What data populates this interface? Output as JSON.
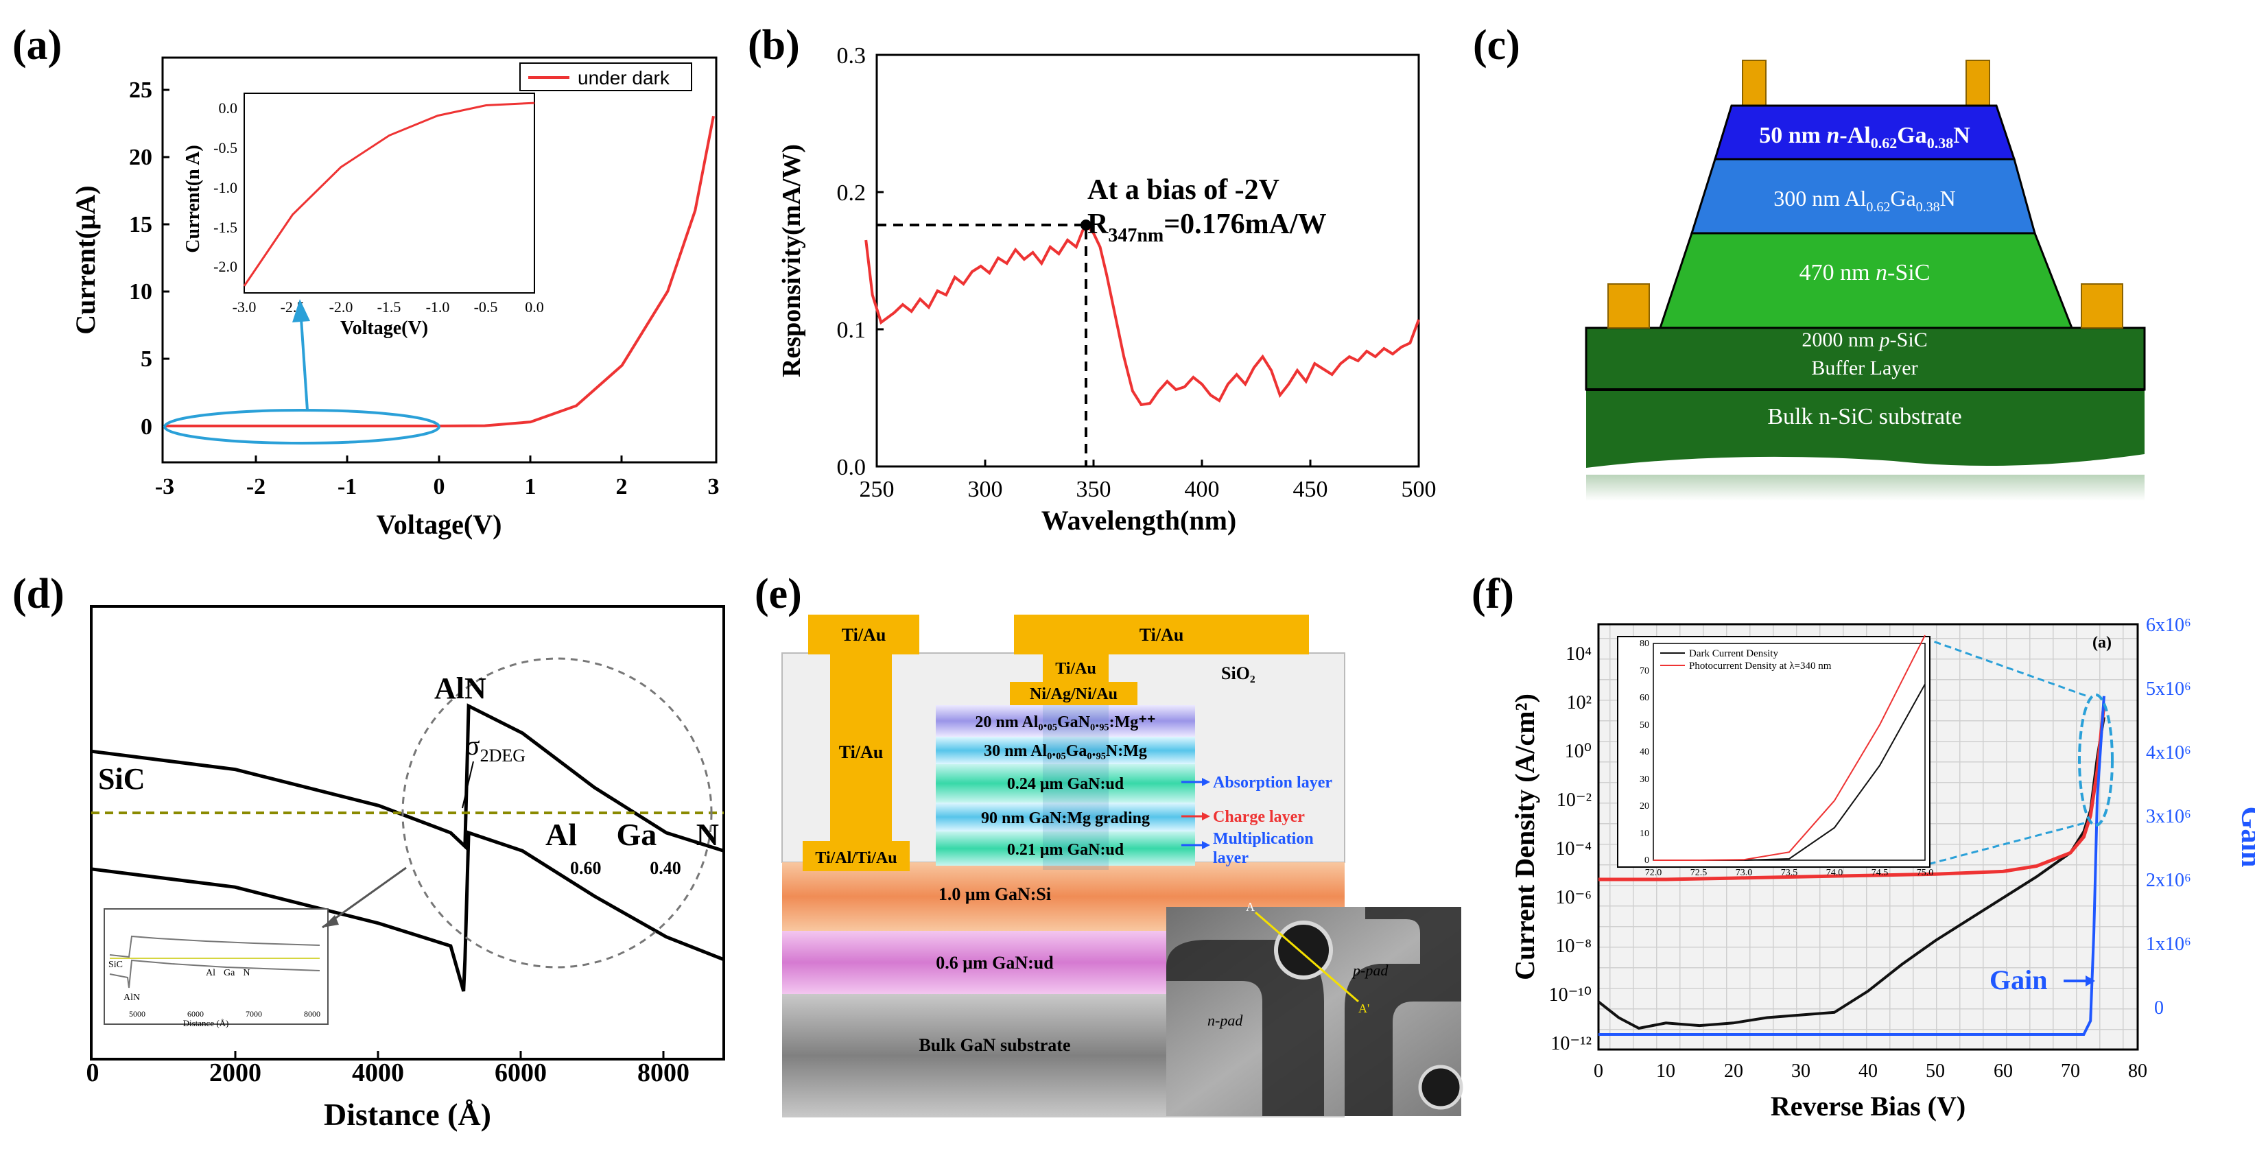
{
  "panels": {
    "a": {
      "label": "(a)",
      "xlabel": "Voltage(V)",
      "ylabel": "Current(μA)",
      "xticks": [
        "-3",
        "-2",
        "-1",
        "0",
        "1",
        "2",
        "3"
      ],
      "yticks": [
        "0",
        "5",
        "10",
        "15",
        "20",
        "25"
      ],
      "legend": "under dark",
      "inset": {
        "xlabel": "Voltage(V)",
        "ylabel": "Current(n A)",
        "xticks": [
          "-3.0",
          "-2.5",
          "-2.0",
          "-1.5",
          "-1.0",
          "-0.5",
          "0.0"
        ],
        "yticks": [
          "0.0",
          "-0.5",
          "-1.0",
          "-1.5",
          "-2.0"
        ]
      }
    },
    "b": {
      "label": "(b)",
      "xlabel": "Wavelength(nm)",
      "ylabel": "Responsivity(mA/W)",
      "xticks": [
        "250",
        "300",
        "350",
        "400",
        "450",
        "500"
      ],
      "yticks": [
        "0.0",
        "0.1",
        "0.2",
        "0.3"
      ],
      "annotation_line1": "At a bias of -2V",
      "annotation_r": "R",
      "annotation_sub": "347nm",
      "annotation_val": "=0.176mA/W"
    },
    "c": {
      "label": "(c)",
      "layers": {
        "l1_pre": "50 nm ",
        "l1_n": "n",
        "l1_mid": "-Al",
        "l1_s1": "0.62",
        "l1_ga": "Ga",
        "l1_s2": "0.38",
        "l1_end": "N",
        "l2_pre": "300 nm Al",
        "l2_s1": "0.62",
        "l2_ga": "Ga",
        "l2_s2": "0.38",
        "l2_end": "N",
        "l3_pre": "470 nm ",
        "l3_n": "n",
        "l3_end": "-SiC",
        "l4_pre": "2000 nm ",
        "l4_p": "p",
        "l4_end": "-SiC",
        "l4_line2": "Buffer Layer",
        "l5": "Bulk n-SiC substrate"
      }
    },
    "d": {
      "label": "(d)",
      "xlabel": "Distance (Å)",
      "xticks": [
        "0",
        "2000",
        "4000",
        "6000",
        "8000"
      ],
      "sic": "SiC",
      "aln": "AlN",
      "sigma": "σ",
      "sigma_sub": "2DEG",
      "al": "Al",
      "al_sub": "0.60",
      "ga": "Ga",
      "ga_sub": "0.40",
      "n": "N",
      "inset": {
        "sic": "SiC",
        "aln": "AlN",
        "al": "Al",
        "ga": "Ga",
        "n": "N",
        "xlabel": "Distance (Å)",
        "xticks": [
          "5000",
          "6000",
          "7000",
          "8000"
        ]
      }
    },
    "e": {
      "label": "(e)",
      "tiau_left_top": "Ti/Au",
      "tiau_left_mid": "Ti/Au",
      "tiau_right_top": "Ti/Au",
      "tiau_small": "Ti/Au",
      "niagniau": "Ni/Ag/Ni/Au",
      "sio2": "SiO₂",
      "tialtiau": "Ti/Al/Ti/Au",
      "layer1": "20 nm Al₀.₀₅GaN₀.₉₅:Mg⁺⁺",
      "layer2": "30 nm Al₀.₀₅Ga₀.₉₅N:Mg",
      "layer3": "0.24 μm GaN:ud",
      "layer4": "90 nm GaN:Mg grading",
      "layer5": "0.21 μm GaN:ud",
      "layer6": "1.0 μm GaN:Si",
      "layer7": "0.6 μm GaN:ud",
      "layer8": "Bulk GaN substrate",
      "absorption": "Absorption layer",
      "charge": "Charge layer",
      "mult1": "Multiplication",
      "mult2": "layer",
      "sem_npad": "n-pad",
      "sem_ppad": "p-pad",
      "sem_a": "A",
      "sem_a2": "A'"
    },
    "f": {
      "label": "(f)",
      "xlabel": "Reverse Bias (V)",
      "ylabel": "Current Density (A/cm²)",
      "ylabel_right": "Gain",
      "xticks": [
        "0",
        "10",
        "20",
        "30",
        "40",
        "50",
        "60",
        "70",
        "80"
      ],
      "yticks_left": [
        "10⁴",
        "10²",
        "10⁰",
        "10⁻²",
        "10⁻⁴",
        "10⁻⁶",
        "10⁻⁸",
        "10⁻¹⁰",
        "10⁻¹²"
      ],
      "yticks_right": [
        "6x10⁶",
        "5x10⁶",
        "4x10⁶",
        "3x10⁶",
        "2x10⁶",
        "1x10⁶",
        "0"
      ],
      "gain_label": "Gain",
      "corner": "(a)",
      "inset": {
        "legend1": "Dark Current Density",
        "legend2": "Photocurrent Density at λ=340 nm",
        "xticks": [
          "72.0",
          "72.5",
          "73.0",
          "73.5",
          "74.0",
          "74.5",
          "75.0"
        ],
        "yticks": [
          "0",
          "10",
          "20",
          "30",
          "40",
          "50",
          "60",
          "70",
          "80"
        ]
      }
    }
  },
  "colors": {
    "red": "#ee3333",
    "blue": "#1f57ff",
    "cyan": "#2aa0d8",
    "gold": "#f7b500",
    "contact": "#e8a200"
  },
  "chart_data": [
    {
      "panel": "a",
      "type": "line",
      "title": "",
      "xlabel": "Voltage(V)",
      "ylabel": "Current(μA)",
      "xlim": [
        -3,
        3
      ],
      "ylim": [
        -2,
        27
      ],
      "series": [
        {
          "name": "under dark",
          "x": [
            -3,
            -2,
            -1,
            0,
            0.5,
            1.0,
            1.5,
            2.0,
            2.5,
            2.8,
            3.0
          ],
          "y": [
            0,
            0,
            0,
            0,
            0.02,
            0.3,
            1.5,
            4.5,
            10.0,
            16.0,
            23.0
          ]
        }
      ],
      "inset": {
        "xlabel": "Voltage(V)",
        "ylabel": "Current(n A)",
        "xlim": [
          -3,
          0
        ],
        "ylim": [
          -2.4,
          0.15
        ],
        "series": [
          {
            "name": "under dark",
            "x": [
              -3.0,
              -2.5,
              -2.0,
              -1.5,
              -1.0,
              -0.5,
              0.0
            ],
            "y": [
              -2.25,
              -1.35,
              -0.75,
              -0.35,
              -0.1,
              0.03,
              0.06
            ]
          }
        ]
      }
    },
    {
      "panel": "b",
      "type": "line",
      "title": "",
      "xlabel": "Wavelength(nm)",
      "ylabel": "Responsivity(mA/W)",
      "xlim": [
        245,
        500
      ],
      "ylim": [
        0,
        0.3
      ],
      "annotation": {
        "x": 347,
        "y": 0.176
      },
      "series": [
        {
          "name": "responsivity",
          "x": [
            245,
            248,
            252,
            258,
            262,
            266,
            270,
            274,
            278,
            282,
            286,
            290,
            294,
            298,
            302,
            306,
            310,
            314,
            318,
            322,
            326,
            330,
            334,
            338,
            342,
            345,
            347,
            350,
            353,
            356,
            360,
            364,
            368,
            372,
            376,
            380,
            384,
            388,
            392,
            396,
            400,
            404,
            408,
            412,
            416,
            420,
            424,
            428,
            432,
            436,
            440,
            444,
            448,
            452,
            456,
            460,
            464,
            468,
            472,
            476,
            480,
            484,
            488,
            492,
            496,
            500
          ],
          "y": [
            0.165,
            0.125,
            0.105,
            0.112,
            0.118,
            0.113,
            0.122,
            0.116,
            0.128,
            0.125,
            0.138,
            0.133,
            0.142,
            0.146,
            0.141,
            0.152,
            0.148,
            0.158,
            0.151,
            0.156,
            0.148,
            0.16,
            0.155,
            0.165,
            0.16,
            0.172,
            0.176,
            0.17,
            0.16,
            0.14,
            0.11,
            0.08,
            0.055,
            0.045,
            0.046,
            0.055,
            0.062,
            0.056,
            0.058,
            0.065,
            0.06,
            0.052,
            0.048,
            0.06,
            0.067,
            0.06,
            0.072,
            0.08,
            0.07,
            0.052,
            0.06,
            0.07,
            0.062,
            0.075,
            0.071,
            0.067,
            0.075,
            0.08,
            0.077,
            0.084,
            0.08,
            0.086,
            0.082,
            0.087,
            0.09,
            0.107
          ]
        }
      ]
    },
    {
      "panel": "d",
      "type": "line",
      "title": "",
      "xlabel": "Distance (Å)",
      "ylabel": "",
      "xlim": [
        0,
        8800
      ],
      "series": [
        {
          "name": "upper band",
          "x": [
            0,
            2000,
            4000,
            5000,
            5200,
            5250,
            6000,
            7000,
            8000,
            8800
          ],
          "y": [
            0.68,
            0.64,
            0.56,
            0.5,
            0.47,
            0.78,
            0.72,
            0.6,
            0.5,
            0.46
          ]
        },
        {
          "name": "lower band",
          "x": [
            0,
            2000,
            4000,
            5000,
            5180,
            5200,
            5250,
            6000,
            7000,
            8000,
            8800
          ],
          "y": [
            0.42,
            0.38,
            0.3,
            0.25,
            0.15,
            0.22,
            0.5,
            0.46,
            0.36,
            0.27,
            0.22
          ]
        },
        {
          "name": "fermi level",
          "x": [
            0,
            8800
          ],
          "y": [
            0.46,
            0.46
          ]
        }
      ]
    },
    {
      "panel": "f",
      "type": "line",
      "title": "",
      "xlabel": "Reverse Bias (V)",
      "ylabel": "Current Density (A/cm²)",
      "ylabel_right": "Gain",
      "xlim": [
        0,
        80
      ],
      "ylim_log10": [
        -12,
        4
      ],
      "ylim_right": [
        0,
        6000000
      ],
      "series": [
        {
          "name": "Dark Current Density",
          "x": [
            0,
            3,
            6,
            10,
            15,
            20,
            25,
            30,
            35,
            40,
            45,
            50,
            55,
            60,
            65,
            70,
            72,
            73,
            74,
            75
          ],
          "y_log10": [
            -10.2,
            -10.8,
            -11.2,
            -11.0,
            -11.1,
            -11.0,
            -10.8,
            -10.7,
            -10.6,
            -9.8,
            -8.8,
            -7.9,
            -7.1,
            -6.3,
            -5.5,
            -4.6,
            -3.8,
            -3.0,
            -1.0,
            0.5
          ]
        },
        {
          "name": "Photocurrent Density at λ=340 nm",
          "x": [
            0,
            10,
            20,
            30,
            40,
            50,
            60,
            65,
            70,
            72,
            73,
            74,
            75
          ],
          "y_log10": [
            -5.6,
            -5.6,
            -5.55,
            -5.5,
            -5.45,
            -5.4,
            -5.3,
            -5.1,
            -4.6,
            -4.0,
            -3.2,
            -1.5,
            1.0
          ]
        },
        {
          "name": "Gain",
          "axis": "right",
          "x": [
            0,
            40,
            70,
            72,
            73,
            73.5,
            74,
            75
          ],
          "y": [
            0,
            0,
            0,
            0,
            200000,
            1500000,
            3500000,
            5000000
          ]
        }
      ],
      "inset": {
        "xlim": [
          72,
          75
        ],
        "ylim": [
          0,
          80
        ],
        "series": [
          {
            "name": "Dark Current Density",
            "x": [
              72,
              72.5,
              73,
              73.5,
              74,
              74.5,
              75
            ],
            "y": [
              0,
              0,
              0,
              0.5,
              12,
              35,
              65
            ]
          },
          {
            "name": "Photocurrent Density at λ=340 nm",
            "x": [
              72,
              72.5,
              73,
              73.5,
              74,
              74.5,
              75
            ],
            "y": [
              0,
              0,
              0.2,
              3,
              22,
              50,
              83
            ]
          }
        ]
      }
    }
  ]
}
